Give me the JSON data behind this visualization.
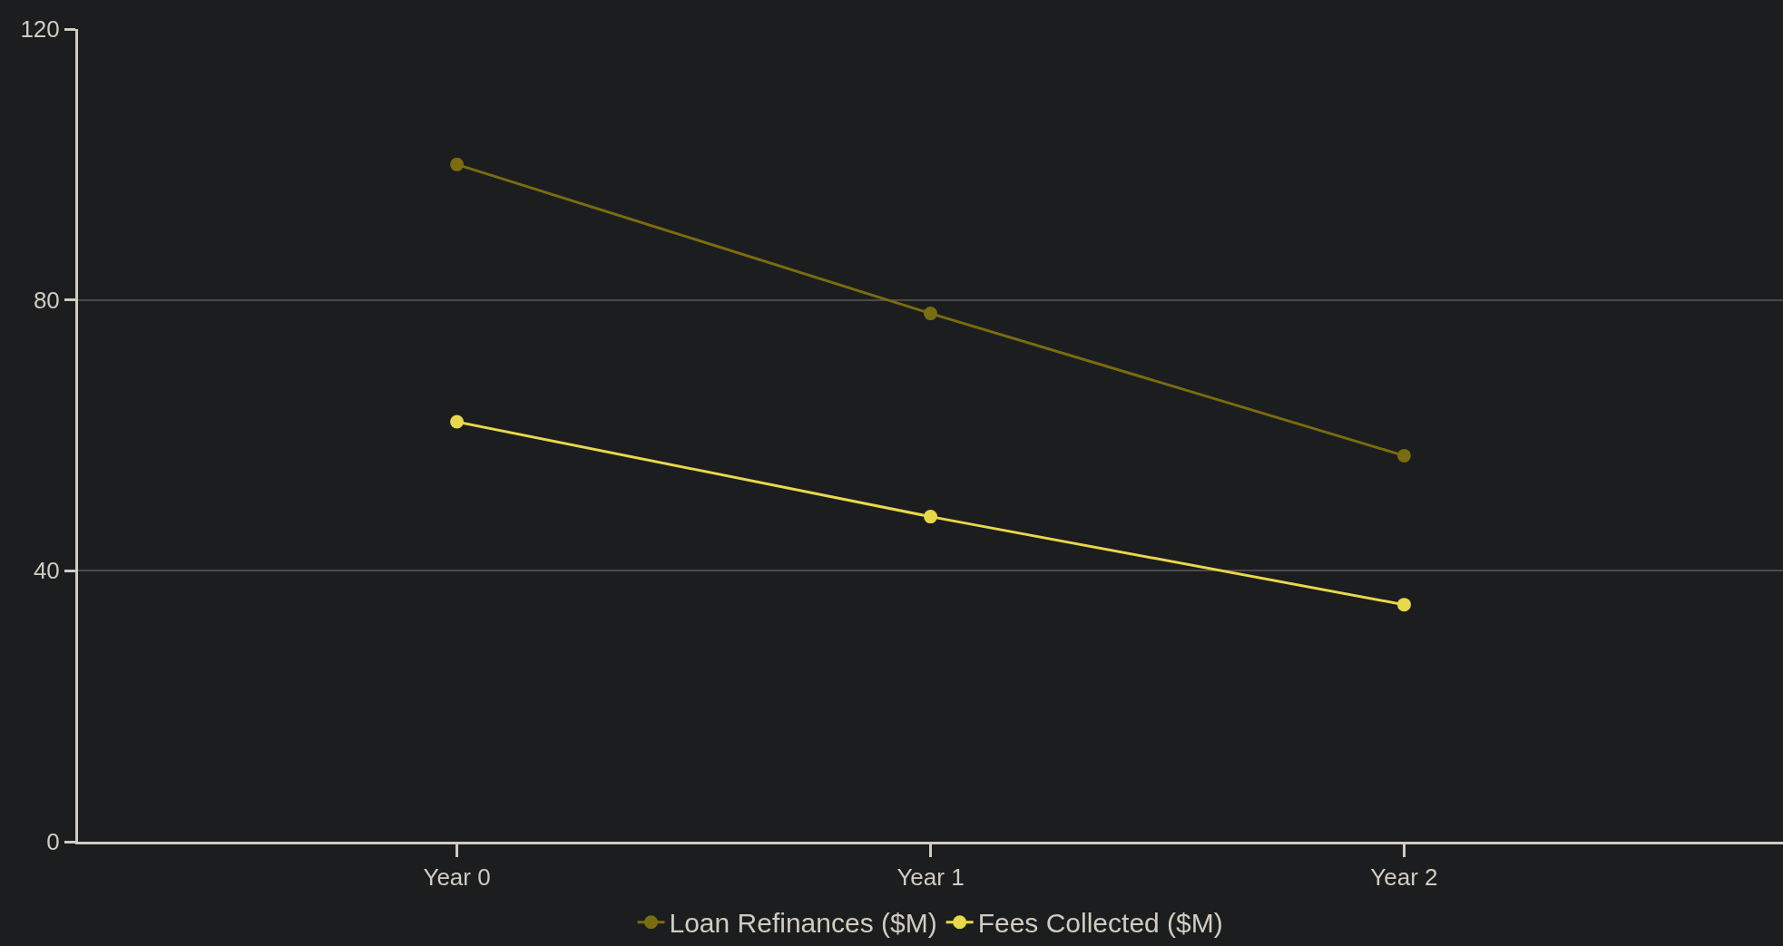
{
  "chart_data": {
    "type": "line",
    "categories": [
      "Year 0",
      "Year 1",
      "Year 2"
    ],
    "series": [
      {
        "name": "Loan Refinances ($M)",
        "color": "#7a6c10",
        "values": [
          100,
          78,
          57
        ]
      },
      {
        "name": "Fees Collected ($M)",
        "color": "#e8d84a",
        "values": [
          62,
          48,
          35
        ]
      }
    ],
    "ylim": [
      0,
      120
    ],
    "yticks": [
      0,
      40,
      80,
      120
    ],
    "grid": "y",
    "legend": "bottom",
    "marker": "circle",
    "line_style": "solid"
  }
}
